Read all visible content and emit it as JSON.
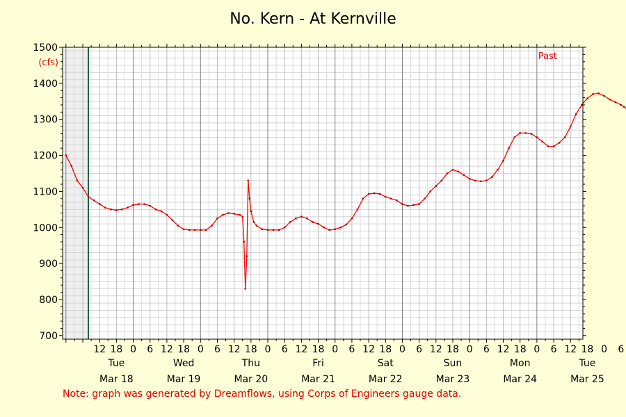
{
  "chart_data": {
    "type": "line",
    "title": "No. Kern - At Kernville",
    "ylabel": "(cfs)",
    "ylim": [
      690,
      1500
    ],
    "y_ticks": [
      700,
      800,
      900,
      1000,
      1100,
      1200,
      1300,
      1400,
      1500
    ],
    "hour_ticks": [
      "12",
      "18",
      "0",
      "6",
      "12",
      "18",
      "0",
      "6",
      "12",
      "18",
      "0",
      "6",
      "12",
      "18",
      "0",
      "6",
      "12",
      "18",
      "0",
      "6",
      "12",
      "18",
      "0",
      "6",
      "12",
      "18",
      "0",
      "6",
      "12",
      "18",
      "0",
      "6",
      "12",
      "18",
      "0",
      "6",
      "12",
      "18",
      "0"
    ],
    "day_labels": [
      {
        "day": "Tue",
        "date": "Mar 18",
        "hour_offset": 18
      },
      {
        "day": "Wed",
        "date": "Mar 19",
        "hour_offset": 42
      },
      {
        "day": "Thu",
        "date": "Mar 20",
        "hour_offset": 66
      },
      {
        "day": "Fri",
        "date": "Mar 21",
        "hour_offset": 90
      },
      {
        "day": "Sat",
        "date": "Mar 22",
        "hour_offset": 114
      },
      {
        "day": "Sun",
        "date": "Mar 23",
        "hour_offset": 138
      },
      {
        "day": "Mon",
        "date": "Mar 24",
        "hour_offset": 162
      },
      {
        "day": "Tue",
        "date": "Mar 25",
        "hour_offset": 186
      }
    ],
    "annotation": "Past",
    "note": "Note: graph was generated by Dreamflows, using Corps of Engineers gauge data.",
    "grid": true,
    "series": [
      {
        "color": "#ff0000",
        "points": [
          [
            0,
            1200
          ],
          [
            2,
            1170
          ],
          [
            4,
            1130
          ],
          [
            6,
            1110
          ],
          [
            8,
            1085
          ],
          [
            10,
            1075
          ],
          [
            12,
            1065
          ],
          [
            14,
            1055
          ],
          [
            16,
            1050
          ],
          [
            18,
            1048
          ],
          [
            20,
            1050
          ],
          [
            22,
            1055
          ],
          [
            24,
            1062
          ],
          [
            26,
            1065
          ],
          [
            28,
            1065
          ],
          [
            30,
            1060
          ],
          [
            32,
            1050
          ],
          [
            34,
            1045
          ],
          [
            36,
            1035
          ],
          [
            38,
            1020
          ],
          [
            40,
            1005
          ],
          [
            42,
            995
          ],
          [
            44,
            993
          ],
          [
            46,
            993
          ],
          [
            48,
            993
          ],
          [
            50,
            993
          ],
          [
            52,
            1005
          ],
          [
            54,
            1025
          ],
          [
            56,
            1035
          ],
          [
            58,
            1040
          ],
          [
            60,
            1038
          ],
          [
            62,
            1035
          ],
          [
            63,
            1030
          ],
          [
            63.5,
            960
          ],
          [
            64,
            830
          ],
          [
            64.5,
            920
          ],
          [
            65,
            1130
          ],
          [
            65.5,
            1080
          ],
          [
            66,
            1045
          ],
          [
            67,
            1015
          ],
          [
            68,
            1005
          ],
          [
            70,
            995
          ],
          [
            72,
            993
          ],
          [
            74,
            993
          ],
          [
            76,
            993
          ],
          [
            78,
            1000
          ],
          [
            80,
            1015
          ],
          [
            82,
            1025
          ],
          [
            84,
            1030
          ],
          [
            86,
            1025
          ],
          [
            88,
            1015
          ],
          [
            90,
            1010
          ],
          [
            92,
            1000
          ],
          [
            94,
            993
          ],
          [
            96,
            995
          ],
          [
            98,
            1000
          ],
          [
            100,
            1008
          ],
          [
            102,
            1025
          ],
          [
            104,
            1050
          ],
          [
            106,
            1080
          ],
          [
            108,
            1093
          ],
          [
            110,
            1095
          ],
          [
            112,
            1093
          ],
          [
            114,
            1085
          ],
          [
            116,
            1080
          ],
          [
            118,
            1075
          ],
          [
            120,
            1065
          ],
          [
            122,
            1060
          ],
          [
            124,
            1062
          ],
          [
            126,
            1065
          ],
          [
            128,
            1080
          ],
          [
            130,
            1100
          ],
          [
            132,
            1115
          ],
          [
            134,
            1130
          ],
          [
            136,
            1150
          ],
          [
            138,
            1160
          ],
          [
            140,
            1155
          ],
          [
            142,
            1145
          ],
          [
            144,
            1135
          ],
          [
            146,
            1130
          ],
          [
            148,
            1128
          ],
          [
            150,
            1130
          ],
          [
            152,
            1140
          ],
          [
            154,
            1160
          ],
          [
            156,
            1185
          ],
          [
            158,
            1220
          ],
          [
            160,
            1250
          ],
          [
            162,
            1262
          ],
          [
            164,
            1262
          ],
          [
            166,
            1260
          ],
          [
            168,
            1250
          ],
          [
            170,
            1238
          ],
          [
            172,
            1225
          ],
          [
            174,
            1225
          ],
          [
            176,
            1235
          ],
          [
            178,
            1250
          ],
          [
            180,
            1280
          ],
          [
            182,
            1315
          ],
          [
            184,
            1340
          ],
          [
            186,
            1358
          ],
          [
            188,
            1370
          ],
          [
            190,
            1372
          ],
          [
            192,
            1365
          ],
          [
            194,
            1355
          ],
          [
            196,
            1348
          ],
          [
            198,
            1340
          ],
          [
            199,
            1335
          ],
          [
            200,
            1330
          ]
        ]
      }
    ]
  }
}
